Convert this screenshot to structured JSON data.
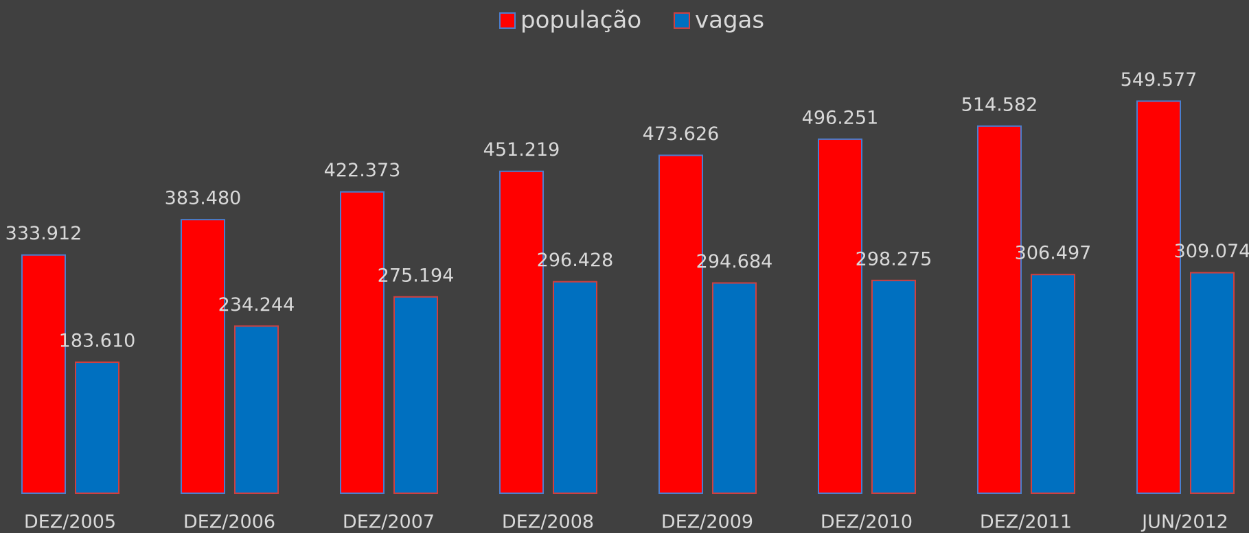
{
  "chart_data": {
    "type": "bar",
    "categories": [
      "DEZ/2005",
      "DEZ/2006",
      "DEZ/2007",
      "DEZ/2008",
      "DEZ/2009",
      "DEZ/2010",
      "DEZ/2011",
      "JUN/2012"
    ],
    "series": [
      {
        "name": "população",
        "color": "#ff0000",
        "values": [
          333912,
          383480,
          422373,
          451219,
          473626,
          496251,
          514582,
          549577
        ],
        "value_labels": [
          "333.912",
          "383.480",
          "422.373",
          "451.219",
          "473.626",
          "496.251",
          "514.582",
          "549.577"
        ]
      },
      {
        "name": "vagas",
        "color": "#0070c0",
        "values": [
          183610,
          234244,
          275194,
          296428,
          294684,
          298275,
          306497,
          309074
        ],
        "value_labels": [
          "183.610",
          "234.244",
          "275.194",
          "296.428",
          "294.684",
          "298.275",
          "306.497",
          "309.074"
        ]
      }
    ],
    "ylim": [
      0,
      600000
    ],
    "legend": "top"
  }
}
